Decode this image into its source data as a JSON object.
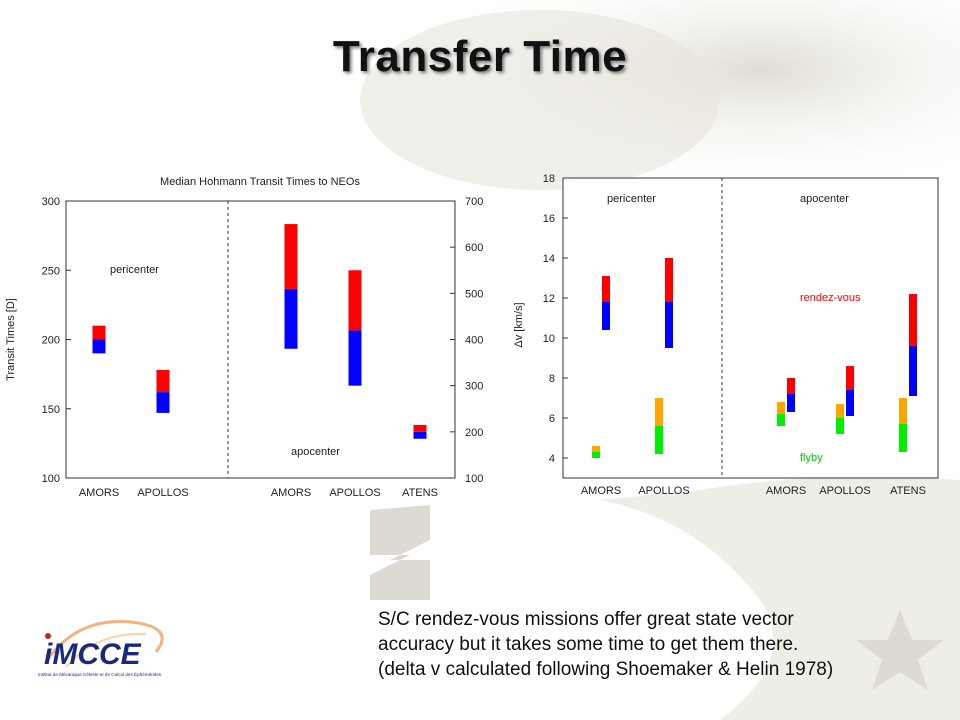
{
  "slide": {
    "title": "Transfer Time",
    "caption_lines": [
      "S/C rendez-vous missions offer great  state vector",
      "accuracy  but it takes some time to get them there.",
      "(delta v  calculated following Shoemaker & Helin 1978)"
    ],
    "logo_text": "Institut de Mécanique Céleste et de Calcul des Éphémérides",
    "logo_mark": "iMCCE"
  },
  "chart_data": [
    {
      "type": "bar",
      "title": "Median Hohmann Transit Times to NEOs",
      "ylabel": "Transit Times [D]",
      "ylim": [
        100,
        300
      ],
      "yticks": [
        100,
        150,
        200,
        250,
        300
      ],
      "y2lim": [
        100,
        700
      ],
      "y2ticks": [
        100,
        200,
        300,
        400,
        500,
        600,
        700
      ],
      "panels": [
        {
          "label": "pericenter",
          "categories": [
            "AMORS",
            "APOLLOS"
          ],
          "axis": "left"
        },
        {
          "label": "apocenter",
          "categories": [
            "AMORS",
            "APOLLOS",
            "ATENS"
          ],
          "axis": "right"
        }
      ],
      "floating_bars": [
        {
          "panel": "pericenter",
          "category": "AMORS",
          "lower": [
            190,
            200
          ],
          "upper": [
            200,
            210
          ]
        },
        {
          "panel": "pericenter",
          "category": "APOLLOS",
          "lower": [
            147,
            162
          ],
          "upper": [
            162,
            178
          ]
        },
        {
          "panel": "apocenter",
          "category": "AMORS",
          "lower": [
            380,
            510
          ],
          "upper": [
            510,
            650
          ]
        },
        {
          "panel": "apocenter",
          "category": "APOLLOS",
          "lower": [
            300,
            420
          ],
          "upper": [
            420,
            550
          ]
        },
        {
          "panel": "apocenter",
          "category": "ATENS",
          "lower": [
            185,
            200
          ],
          "upper": [
            200,
            215
          ]
        }
      ],
      "colors": {
        "lower": "#0000ff",
        "upper": "#ff0000"
      },
      "grid": false
    },
    {
      "type": "bar",
      "title": "",
      "ylabel": "Δv [km/s]",
      "ylim": [
        3,
        18
      ],
      "yticks": [
        4,
        6,
        8,
        10,
        12,
        14,
        16,
        18
      ],
      "panels": [
        {
          "label": "pericenter",
          "categories": [
            "AMORS",
            "APOLLOS"
          ]
        },
        {
          "label": "apocenter",
          "categories": [
            "AMORS",
            "APOLLOS",
            "ATENS"
          ]
        }
      ],
      "annotations": [
        {
          "text": "rendez-vous",
          "color": "#ff0000"
        },
        {
          "text": "flyby",
          "color": "#00cc00"
        }
      ],
      "rendezvous_bars": [
        {
          "panel": "pericenter",
          "category": "AMORS",
          "blue": [
            10.4,
            11.8
          ],
          "red": [
            11.8,
            13.1
          ]
        },
        {
          "panel": "pericenter",
          "category": "APOLLOS",
          "blue": [
            9.5,
            11.8
          ],
          "red": [
            11.8,
            14.0
          ]
        },
        {
          "panel": "apocenter",
          "category": "AMORS",
          "blue": [
            6.3,
            7.2
          ],
          "red": [
            7.2,
            8.0
          ]
        },
        {
          "panel": "apocenter",
          "category": "APOLLOS",
          "blue": [
            6.1,
            7.4
          ],
          "red": [
            7.4,
            8.6
          ]
        },
        {
          "panel": "apocenter",
          "category": "ATENS",
          "blue": [
            7.1,
            9.6
          ],
          "red": [
            9.6,
            12.2
          ]
        }
      ],
      "flyby_bars": [
        {
          "panel": "pericenter",
          "category": "AMORS",
          "green": [
            4.0,
            4.3
          ],
          "orange": [
            4.3,
            4.6
          ]
        },
        {
          "panel": "pericenter",
          "category": "APOLLOS",
          "green": [
            4.2,
            5.6
          ],
          "orange": [
            5.6,
            7.0
          ]
        },
        {
          "panel": "apocenter",
          "category": "AMORS",
          "green": [
            5.6,
            6.2
          ],
          "orange": [
            6.2,
            6.8
          ]
        },
        {
          "panel": "apocenter",
          "category": "APOLLOS",
          "green": [
            5.2,
            6.0
          ],
          "orange": [
            6.0,
            6.7
          ]
        },
        {
          "panel": "apocenter",
          "category": "ATENS",
          "green": [
            4.3,
            5.7
          ],
          "orange": [
            5.7,
            7.0
          ]
        }
      ],
      "colors": {
        "blue": "#0000ff",
        "red": "#ff0000",
        "green": "#00ee00",
        "orange": "#ffa500"
      },
      "grid": false
    }
  ]
}
